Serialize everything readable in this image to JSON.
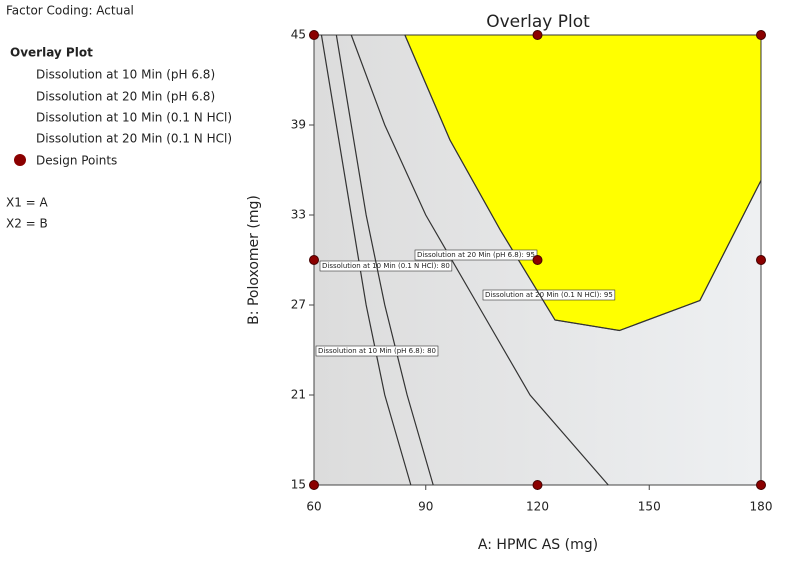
{
  "chart_data": {
    "type": "overlay",
    "title": "Overlay Plot",
    "factor_coding": "Factor Coding: Actual",
    "legend_title": "Overlay Plot",
    "legend": [
      "Dissolution at 10 Min (pH 6.8)",
      "Dissolution at 20 Min (pH 6.8)",
      "Dissolution at 10 Min (0.1 N HCl)",
      "Dissolution at 20 Min (0.1 N HCl)"
    ],
    "design_points_label": "Design Points",
    "factor_map": [
      "X1 = A",
      "X2 = B"
    ],
    "x_label": "A: HPMC AS (mg)",
    "y_label": "B: Poloxomer (mg)",
    "xlim": [
      60,
      180
    ],
    "ylim": [
      15,
      45
    ],
    "xticks": [
      60,
      90,
      120,
      150,
      180
    ],
    "yticks": [
      15,
      21,
      27,
      33,
      39,
      45
    ],
    "region_color": "#ffff00",
    "line_color": "#333333",
    "point_color": "#8b0000",
    "design_points": {
      "x": [
        60,
        120,
        180,
        60,
        120,
        180,
        60,
        120,
        180
      ],
      "y": [
        45,
        45,
        45,
        30,
        30,
        30,
        15,
        15,
        15
      ]
    },
    "contours": [
      {
        "label": "Dissolution at 10 Min (0.1 N HCl): 80",
        "x": [
          62,
          66,
          70,
          74,
          79,
          86
        ],
        "y": [
          45,
          39,
          33,
          27,
          21,
          15
        ]
      },
      {
        "label": "Dissolution at 10 Min (pH 6.8): 80",
        "x": [
          66,
          70,
          74,
          79,
          85,
          92
        ],
        "y": [
          45,
          39,
          33,
          27,
          21,
          15
        ]
      },
      {
        "label": "Dissolution at 20 Min (0.1 N HCl): 95",
        "x": [
          70,
          79,
          90,
          104,
          118,
          139
        ],
        "y": [
          45,
          39,
          33,
          27,
          21,
          15
        ]
      },
      {
        "label": "Dissolution at 20 Min (pH 6.8): 95",
        "x": [
          84.4,
          96.5,
          110,
          124.7,
          142,
          163.6,
          180
        ],
        "y": [
          45,
          38,
          32,
          26,
          25.3,
          27.3,
          35.3
        ]
      }
    ]
  }
}
